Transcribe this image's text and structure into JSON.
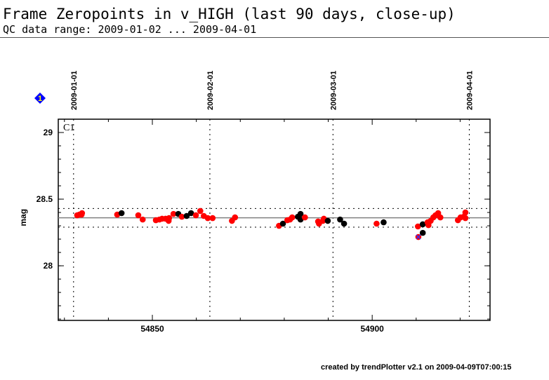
{
  "header": {
    "title": "Frame Zeropoints in v_HIGH (last 90 days, close-up)",
    "subtitle": "QC data range: 2009-01-02 ... 2009-04-01"
  },
  "footer": "created by trendPlotter v2.1 on 2009-04-09T07:00:15",
  "marker_label": "1",
  "chart_data": {
    "type": "scatter",
    "panel_label": "C1",
    "ylabel": "mag",
    "xlim": [
      54828.6,
      54926.8
    ],
    "ylim": [
      27.59,
      29.1
    ],
    "xticks": [
      54850,
      54900
    ],
    "yticks": [
      28,
      28.5,
      29
    ],
    "date_lines": [
      {
        "mjd": 54832,
        "label": "2009-01-01"
      },
      {
        "mjd": 54863,
        "label": "2009-02-01"
      },
      {
        "mjd": 54891,
        "label": "2009-03-01"
      },
      {
        "mjd": 54922,
        "label": "2009-04-01"
      }
    ],
    "mean": 28.36,
    "limits": [
      28.29,
      28.43
    ],
    "colors": {
      "r": "#ff0000",
      "k": "#000000",
      "mean": "#808080",
      "marker": "#0000ff",
      "flag": "#3030ff"
    },
    "points": [
      [
        54832.9,
        28.379,
        "r"
      ],
      [
        54833.4,
        28.384,
        "r"
      ],
      [
        54834.0,
        28.395,
        "r"
      ],
      [
        54833.9,
        28.384,
        "r"
      ],
      [
        54842.0,
        28.384,
        "r"
      ],
      [
        54843.0,
        28.395,
        "k"
      ],
      [
        54846.8,
        28.379,
        "r"
      ],
      [
        54847.8,
        28.347,
        "r"
      ],
      [
        54850.8,
        28.342,
        "r"
      ],
      [
        54851.6,
        28.347,
        "r"
      ],
      [
        54852.2,
        28.353,
        "r"
      ],
      [
        54853.0,
        28.353,
        "r"
      ],
      [
        54853.7,
        28.337,
        "r"
      ],
      [
        54853.8,
        28.358,
        "r"
      ],
      [
        54854.8,
        28.389,
        "r"
      ],
      [
        54855.9,
        28.389,
        "k"
      ],
      [
        54856.7,
        28.368,
        "r"
      ],
      [
        54857.8,
        28.374,
        "k"
      ],
      [
        54858.8,
        28.395,
        "k"
      ],
      [
        54859.9,
        28.379,
        "r"
      ],
      [
        54860.9,
        28.411,
        "r"
      ],
      [
        54861.7,
        28.374,
        "r"
      ],
      [
        54862.6,
        28.358,
        "r"
      ],
      [
        54863.7,
        28.358,
        "r"
      ],
      [
        54868.1,
        28.337,
        "r"
      ],
      [
        54868.8,
        28.363,
        "r"
      ],
      [
        54878.8,
        28.3,
        "r"
      ],
      [
        54879.7,
        28.316,
        "k"
      ],
      [
        54880.7,
        28.342,
        "r"
      ],
      [
        54881.3,
        28.347,
        "r"
      ],
      [
        54881.8,
        28.363,
        "r"
      ],
      [
        54883.1,
        28.368,
        "k"
      ],
      [
        54883.7,
        28.389,
        "k"
      ],
      [
        54883.7,
        28.347,
        "k"
      ],
      [
        54884.7,
        28.363,
        "r"
      ],
      [
        54887.7,
        28.332,
        "r"
      ],
      [
        54887.9,
        28.316,
        "r"
      ],
      [
        54888.8,
        28.337,
        "r"
      ],
      [
        54889.0,
        28.353,
        "r"
      ],
      [
        54889.9,
        28.337,
        "k"
      ],
      [
        54892.7,
        28.347,
        "k"
      ],
      [
        54893.6,
        28.316,
        "k"
      ],
      [
        54901.0,
        28.316,
        "r"
      ],
      [
        54902.6,
        28.326,
        "k"
      ],
      [
        54910.4,
        28.295,
        "r"
      ],
      [
        54911.5,
        28.311,
        "k"
      ],
      [
        54911.5,
        28.247,
        "k"
      ],
      [
        54912.6,
        28.326,
        "r"
      ],
      [
        54912.8,
        28.305,
        "r"
      ],
      [
        54913.3,
        28.337,
        "r"
      ],
      [
        54913.9,
        28.363,
        "r"
      ],
      [
        54914.4,
        28.379,
        "r"
      ],
      [
        54915.0,
        28.395,
        "r"
      ],
      [
        54915.5,
        28.363,
        "r"
      ],
      [
        54919.5,
        28.342,
        "r"
      ],
      [
        54920.1,
        28.363,
        "r"
      ],
      [
        54920.8,
        28.368,
        "r"
      ],
      [
        54921.2,
        28.4,
        "r"
      ],
      [
        54921.2,
        28.358,
        "r"
      ]
    ],
    "flagged_points": [
      [
        54910.5,
        28.216,
        "r"
      ]
    ]
  }
}
